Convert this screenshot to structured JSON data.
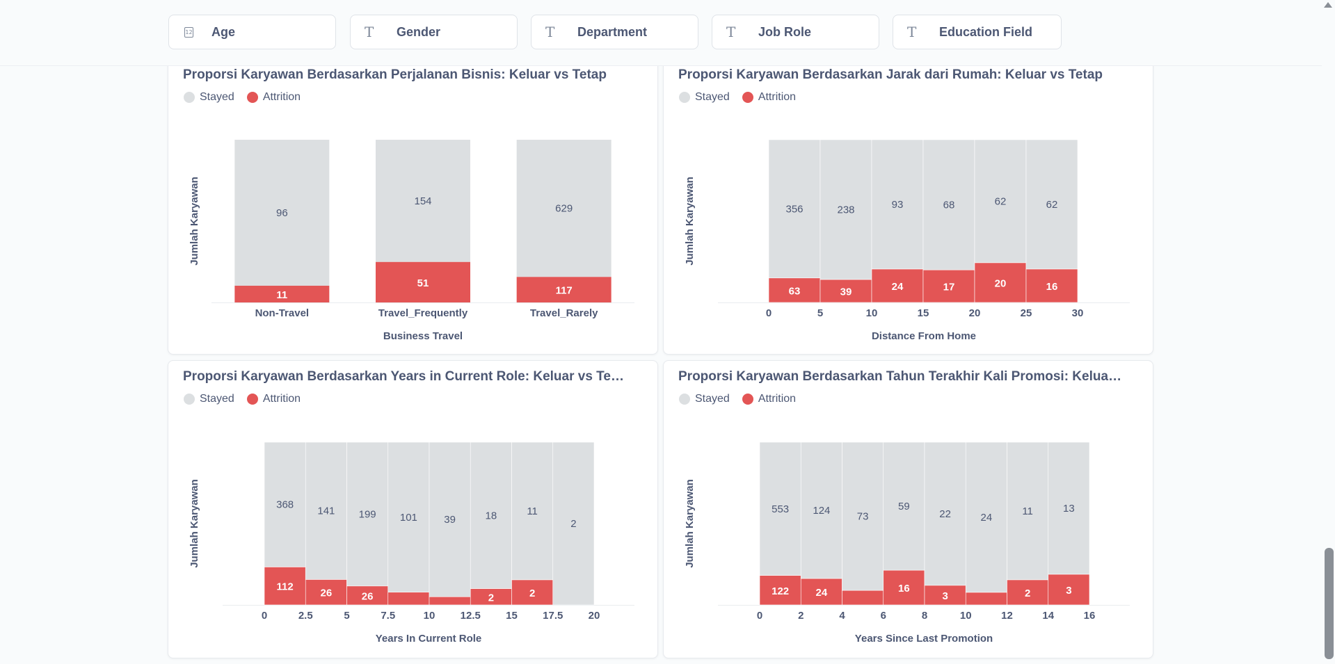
{
  "filters": [
    {
      "label": "Age",
      "icon": "number-icon"
    },
    {
      "label": "Gender",
      "icon": "text-icon"
    },
    {
      "label": "Department",
      "icon": "text-icon"
    },
    {
      "label": "Job Role",
      "icon": "text-icon"
    },
    {
      "label": "Education Field",
      "icon": "text-icon"
    }
  ],
  "colors": {
    "stayed": "#dcdfe1",
    "attrition": "#e35555",
    "text": "#4c5773"
  },
  "legend": {
    "stayed": "Stayed",
    "attrition": "Attrition"
  },
  "chart_data": [
    {
      "type": "bar",
      "stacked": true,
      "title": "Proporsi Karyawan Berdasarkan Perjalanan Bisnis: Keluar vs Tetap",
      "xlabel": "Business Travel",
      "ylabel": "Jumlah Karyawan",
      "categories": [
        "Non-Travel",
        "Travel_Frequently",
        "Travel_Rarely"
      ],
      "series": [
        {
          "name": "Attrition",
          "values": [
            11,
            51,
            117
          ]
        },
        {
          "name": "Stayed",
          "values": [
            96,
            154,
            629
          ]
        }
      ],
      "normalized": true,
      "legend": "top-left",
      "grid": false
    },
    {
      "type": "bar",
      "stacked": true,
      "title": "Proporsi Karyawan Berdasarkan Jarak dari Rumah: Keluar vs Tetap",
      "xlabel": "Distance From Home",
      "ylabel": "Jumlah Karyawan",
      "x_bin_starts": [
        0,
        5,
        10,
        15,
        20,
        25
      ],
      "bin_width": 5,
      "xlim": [
        0,
        30
      ],
      "x_ticks": [
        "0",
        "5",
        "10",
        "15",
        "20",
        "25",
        "30"
      ],
      "series": [
        {
          "name": "Attrition",
          "values": [
            63,
            39,
            24,
            17,
            20,
            16
          ]
        },
        {
          "name": "Stayed",
          "values": [
            356,
            238,
            93,
            68,
            62,
            62
          ]
        }
      ],
      "normalized": true,
      "legend": "top-left",
      "grid": false
    },
    {
      "type": "bar",
      "stacked": true,
      "title": "Proporsi Karyawan Berdasarkan Years in Current Role: Keluar vs Tetap",
      "xlabel": "Years In Current Role",
      "ylabel": "Jumlah Karyawan",
      "x_bin_starts": [
        0,
        2.5,
        5,
        7.5,
        10,
        12.5,
        15,
        17.5
      ],
      "bin_width": 2.5,
      "xlim": [
        0,
        20
      ],
      "x_ticks": [
        "0",
        "2.5",
        "5",
        "7.5",
        "10",
        "12.5",
        "15",
        "17.5",
        "20"
      ],
      "series": [
        {
          "name": "Attrition",
          "values": [
            112,
            26,
            26,
            null,
            null,
            2,
            2,
            0
          ]
        },
        {
          "name": "Stayed",
          "values": [
            368,
            141,
            199,
            101,
            39,
            18,
            11,
            2
          ]
        }
      ],
      "attrition_share": [
        0.233,
        0.156,
        0.116,
        0.078,
        0.05,
        0.1,
        0.154,
        0
      ],
      "normalized": true,
      "legend": "top-left",
      "grid": false
    },
    {
      "type": "bar",
      "stacked": true,
      "title": "Proporsi Karyawan Berdasarkan Tahun Terakhir Kali Promosi: Keluar vs T…",
      "xlabel": "Years Since Last Promotion",
      "ylabel": "Jumlah Karyawan",
      "x_bin_starts": [
        0,
        2,
        4,
        6,
        8,
        10,
        12,
        14
      ],
      "bin_width": 2,
      "xlim": [
        0,
        16
      ],
      "x_ticks": [
        "0",
        "2",
        "4",
        "6",
        "8",
        "10",
        "12",
        "14",
        "16"
      ],
      "series": [
        {
          "name": "Attrition",
          "values": [
            122,
            24,
            null,
            16,
            3,
            null,
            2,
            3
          ]
        },
        {
          "name": "Stayed",
          "values": [
            553,
            124,
            73,
            59,
            22,
            24,
            11,
            13
          ]
        }
      ],
      "attrition_share": [
        0.181,
        0.162,
        0.089,
        0.213,
        0.12,
        0.077,
        0.154,
        0.188
      ],
      "normalized": true,
      "legend": "top-left",
      "grid": false
    }
  ]
}
